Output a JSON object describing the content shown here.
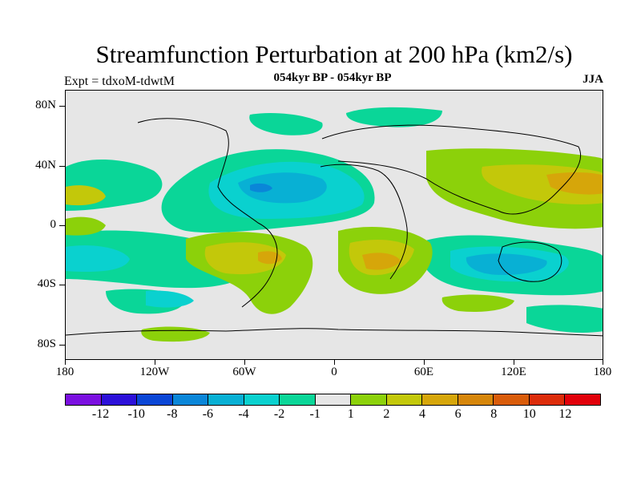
{
  "header": {
    "title": "Streamfunction Perturbation at 200 hPa (km2/s)",
    "subtitle": "054kyr BP - 054kyr BP",
    "expt": "Expt = tdxoM-tdwtM",
    "season": "JJA"
  },
  "map": {
    "lat_labels": [
      "80N",
      "40N",
      "0",
      "40S",
      "80S"
    ],
    "lon_labels": [
      "180",
      "120W",
      "60W",
      "0",
      "60E",
      "120E",
      "180"
    ]
  },
  "colorbar": {
    "colors": [
      "#7b0fe0",
      "#2c10d9",
      "#0a46d6",
      "#0a86d8",
      "#08b0d4",
      "#0ad1cf",
      "#0ad698",
      "#e6e6e6",
      "#8cd10a",
      "#c3c80a",
      "#d6a60a",
      "#d6860a",
      "#d95c0a",
      "#dc2c0a",
      "#e1000a"
    ],
    "labels": [
      "-12",
      "-10",
      "-8",
      "-6",
      "-4",
      "-2",
      "-1",
      "1",
      "2",
      "4",
      "6",
      "8",
      "10",
      "12"
    ]
  }
}
